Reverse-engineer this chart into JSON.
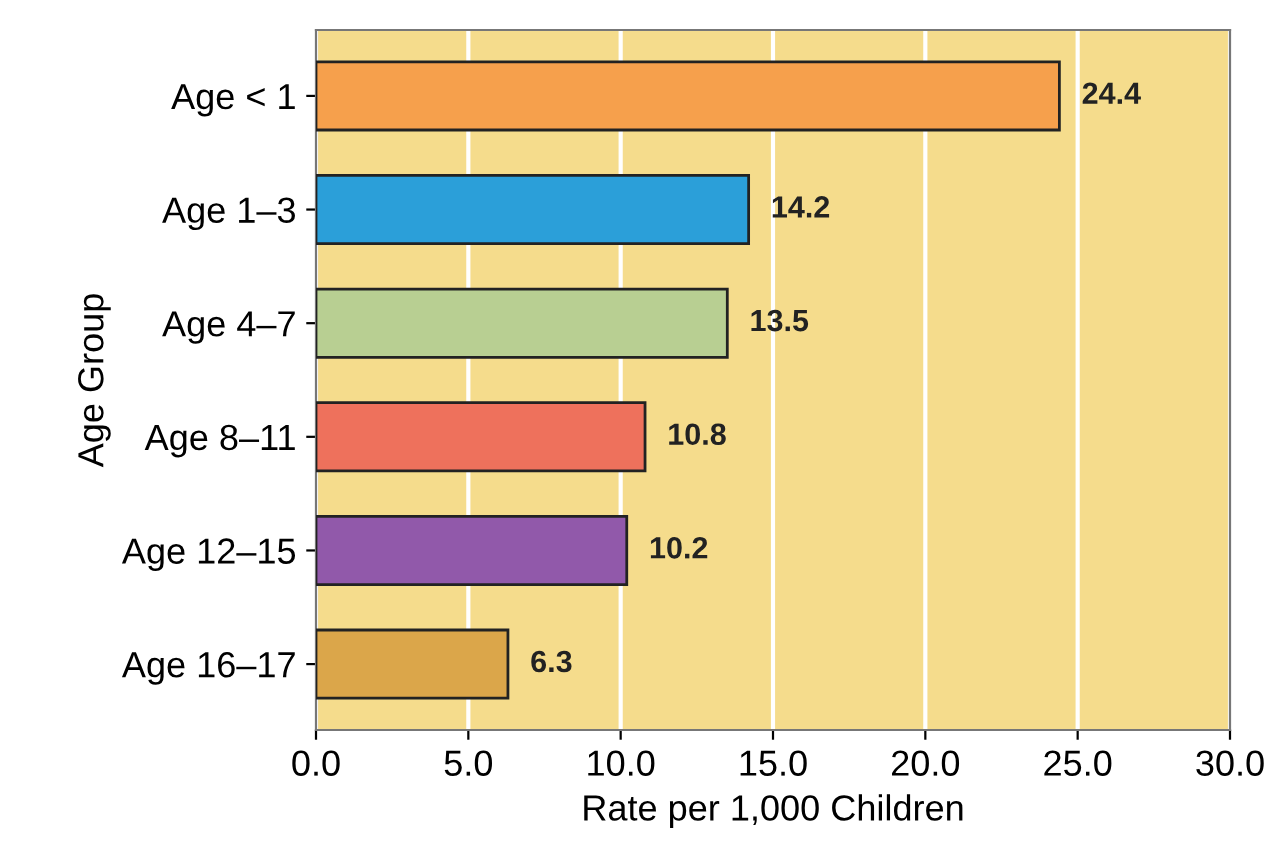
{
  "chart_data": {
    "type": "bar",
    "orientation": "horizontal",
    "xlabel": "Rate per 1,000 Children",
    "ylabel": "Age Group",
    "categories": [
      "Age < 1",
      "Age 1–3",
      "Age 4–7",
      "Age 8–11",
      "Age 12–15",
      "Age 16–17"
    ],
    "values": [
      24.4,
      14.2,
      13.5,
      10.8,
      10.2,
      6.3
    ],
    "colors": [
      "#f6a04c",
      "#2b9fd9",
      "#b8cf92",
      "#ee715c",
      "#9159aa",
      "#dba64a"
    ],
    "xlim": [
      0,
      30
    ],
    "xticks": [
      {
        "value": 0,
        "label": "0.0"
      },
      {
        "value": 5,
        "label": "5.0"
      },
      {
        "value": 10,
        "label": "10.0"
      },
      {
        "value": 15,
        "label": "15.0"
      },
      {
        "value": 20,
        "label": "20.0"
      },
      {
        "value": 25,
        "label": "25.0"
      },
      {
        "value": 30,
        "label": "30.0"
      }
    ],
    "grid": "x",
    "data_labels": true,
    "legend": false
  }
}
